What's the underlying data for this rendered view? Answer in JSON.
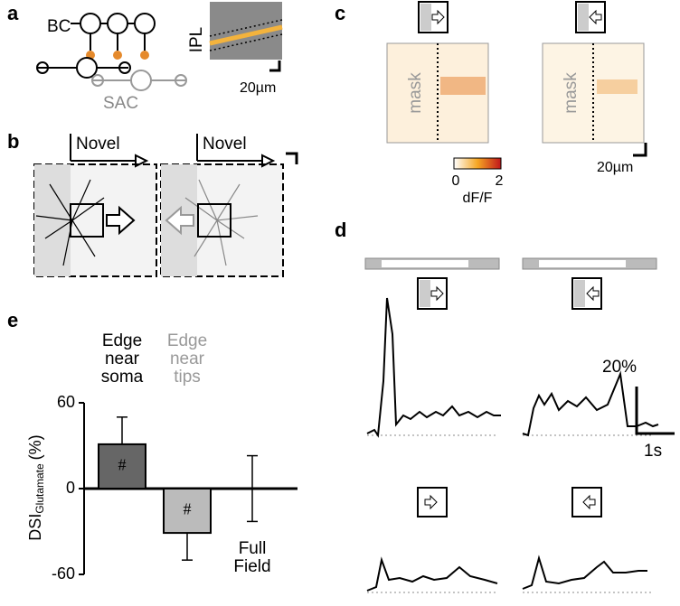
{
  "panels": {
    "a": {
      "letter": "a",
      "bc": "BC",
      "sac": "SAC",
      "ipl": "IPL",
      "scale": "20µm"
    },
    "b": {
      "letter": "b",
      "novel": [
        "Novel",
        "Novel"
      ]
    },
    "c": {
      "letter": "c",
      "mask": [
        "mask",
        "mask"
      ],
      "colorbar_min": "0",
      "colorbar_max": "2",
      "colorbar_title": "dF/F",
      "scale": "20µm"
    },
    "d": {
      "letter": "d",
      "scale_y": "20%",
      "scale_x": "1s"
    },
    "e": {
      "letter": "e"
    }
  },
  "chart_data": {
    "type": "bar",
    "ylabel": "DSI",
    "ylabel_sub": "Glutamate",
    "ylabel_unit": "(%)",
    "categories": [
      "Edge near soma",
      "Edge near tips",
      "Full Field"
    ],
    "category_colors": [
      "#000000",
      "#999999",
      "#000000"
    ],
    "values": [
      31,
      -31,
      0
    ],
    "errors": [
      19,
      19,
      23
    ],
    "colors": [
      "#666666",
      "#bbbbbb",
      "#000000"
    ],
    "annotations": [
      "#",
      "#"
    ],
    "ylim": [
      -60,
      60
    ],
    "yticks": [
      -60,
      0,
      60
    ]
  }
}
